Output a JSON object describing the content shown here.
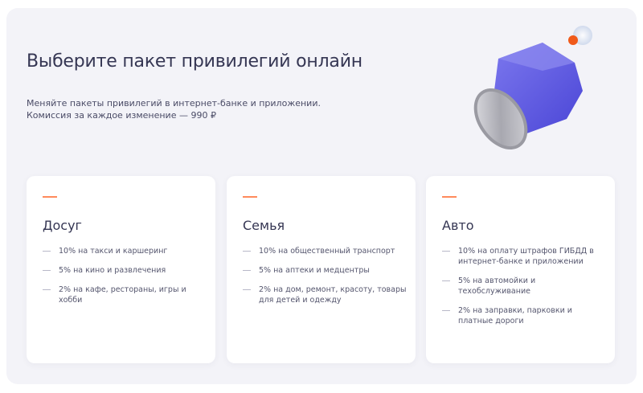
{
  "header": {
    "title": "Выберите пакет привилегий онлайн",
    "subtitle": "Меняйте пакеты привилегий в интернет-банке и приложении. Комиссия за каждое изменение — 990 ₽"
  },
  "colors": {
    "accent": "#ff8a5c",
    "panel": "#f3f3f8",
    "text": "#353653",
    "gem": "#5b57e0"
  },
  "cards": [
    {
      "title": "Досуг",
      "items": [
        "10% на такси и каршеринг",
        "5% на кино и развлечения",
        "2% на кафе, рестораны, игры и хобби"
      ]
    },
    {
      "title": "Семья",
      "items": [
        "10% на общественный транспорт",
        "5% на аптеки и медцентры",
        "2% на дом, ремонт, красоту, товары для детей и одежду"
      ]
    },
    {
      "title": "Авто",
      "items": [
        "10% на оплату штрафов ГИБДД в интернет-банке и приложении",
        "5% на автомойки и техобслуживание",
        "2% на заправки, парковки и платные дороги"
      ]
    }
  ]
}
